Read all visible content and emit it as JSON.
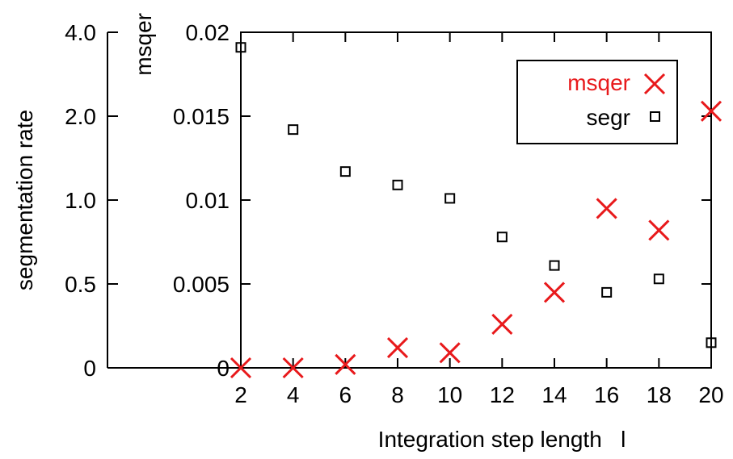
{
  "chart_data": {
    "type": "scatter",
    "title": "",
    "xlabel": "Integration step length   l",
    "ylabel_left": "segmentation rate",
    "ylabel_right_axis": "msqer",
    "x": [
      2,
      4,
      6,
      8,
      10,
      12,
      14,
      16,
      18,
      20
    ],
    "x_ticks": [
      "2",
      "4",
      "6",
      "8",
      "10",
      "12",
      "14",
      "16",
      "18",
      "20"
    ],
    "xlim": [
      2,
      20
    ],
    "y_ticks_outer": [
      "4.0",
      "2.0",
      "1.0",
      "0.5",
      "0"
    ],
    "y_ticks_inner": [
      "0.02",
      "0.015",
      "0.01",
      "0.005",
      "0"
    ],
    "ylim_inner": [
      0,
      0.02
    ],
    "grid": false,
    "legend_position": "top-right",
    "series": [
      {
        "name": "msqer",
        "marker": "cross",
        "color": "#e8191b",
        "values": [
          0.0,
          0.0,
          0.0002,
          0.0012,
          0.0009,
          0.0026,
          0.0045,
          0.0095,
          0.0082,
          0.0153
        ]
      },
      {
        "name": "segr",
        "marker": "open-square",
        "color": "#000000",
        "values": [
          0.0191,
          0.0142,
          0.0117,
          0.0109,
          0.0101,
          0.0078,
          0.0061,
          0.0045,
          0.0053,
          0.0015
        ]
      }
    ]
  }
}
